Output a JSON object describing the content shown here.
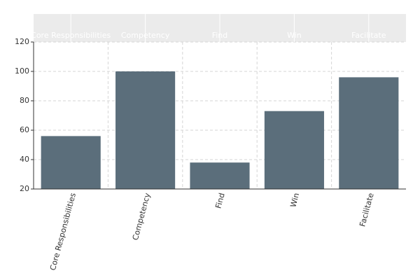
{
  "chart_data": {
    "type": "bar",
    "categories": [
      "Core Responsibilities",
      "Competency",
      "Find",
      "Win",
      "Facilitate"
    ],
    "values": [
      56,
      100,
      38,
      73,
      96
    ],
    "color": "#5b6e7b",
    "ylim": [
      20,
      120
    ],
    "yticks": [
      20,
      40,
      60,
      80,
      100,
      120
    ],
    "grid": true
  }
}
